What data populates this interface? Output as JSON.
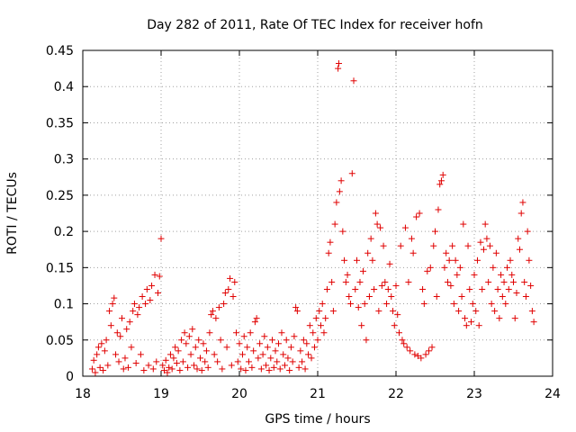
{
  "chart_data": {
    "type": "scatter",
    "title": "Day 282 of 2011, Rate Of TEC Index for receiver hofn",
    "xlabel": "GPS time / hours",
    "ylabel": "ROTI / TECUs",
    "xlim": [
      18,
      24
    ],
    "ylim": [
      0,
      0.45
    ],
    "xticks": [
      "18",
      "19",
      "20",
      "21",
      "22",
      "23",
      "24"
    ],
    "yticks": [
      "0",
      "0.05",
      "0.1",
      "0.15",
      "0.2",
      "0.25",
      "0.3",
      "0.35",
      "0.4",
      "0.45"
    ],
    "grid": true,
    "marker": "plus",
    "color": "#e00000",
    "points": [
      [
        18.12,
        0.01
      ],
      [
        18.14,
        0.022
      ],
      [
        18.16,
        0.005
      ],
      [
        18.18,
        0.03
      ],
      [
        18.2,
        0.04
      ],
      [
        18.22,
        0.012
      ],
      [
        18.24,
        0.045
      ],
      [
        18.26,
        0.008
      ],
      [
        18.28,
        0.035
      ],
      [
        18.3,
        0.05
      ],
      [
        18.32,
        0.015
      ],
      [
        18.34,
        0.09
      ],
      [
        18.36,
        0.07
      ],
      [
        18.38,
        0.1
      ],
      [
        18.4,
        0.108
      ],
      [
        18.42,
        0.03
      ],
      [
        18.44,
        0.06
      ],
      [
        18.46,
        0.02
      ],
      [
        18.48,
        0.055
      ],
      [
        18.5,
        0.08
      ],
      [
        18.52,
        0.01
      ],
      [
        18.54,
        0.025
      ],
      [
        18.56,
        0.065
      ],
      [
        18.58,
        0.012
      ],
      [
        18.6,
        0.075
      ],
      [
        18.62,
        0.04
      ],
      [
        18.64,
        0.09
      ],
      [
        18.66,
        0.1
      ],
      [
        18.68,
        0.018
      ],
      [
        18.7,
        0.085
      ],
      [
        18.72,
        0.095
      ],
      [
        18.74,
        0.03
      ],
      [
        18.76,
        0.11
      ],
      [
        18.78,
        0.008
      ],
      [
        18.8,
        0.1
      ],
      [
        18.82,
        0.12
      ],
      [
        18.84,
        0.015
      ],
      [
        18.86,
        0.105
      ],
      [
        18.88,
        0.125
      ],
      [
        18.9,
        0.01
      ],
      [
        18.92,
        0.14
      ],
      [
        18.94,
        0.02
      ],
      [
        18.96,
        0.115
      ],
      [
        18.98,
        0.138
      ],
      [
        19.0,
        0.19
      ],
      [
        19.02,
        0.015
      ],
      [
        19.04,
        0.008
      ],
      [
        19.06,
        0.022
      ],
      [
        19.08,
        0.005
      ],
      [
        19.1,
        0.012
      ],
      [
        19.12,
        0.03
      ],
      [
        19.14,
        0.01
      ],
      [
        19.16,
        0.025
      ],
      [
        19.18,
        0.04
      ],
      [
        19.2,
        0.018
      ],
      [
        19.22,
        0.035
      ],
      [
        19.24,
        0.008
      ],
      [
        19.26,
        0.05
      ],
      [
        19.28,
        0.02
      ],
      [
        19.3,
        0.06
      ],
      [
        19.32,
        0.045
      ],
      [
        19.34,
        0.012
      ],
      [
        19.36,
        0.055
      ],
      [
        19.38,
        0.03
      ],
      [
        19.4,
        0.065
      ],
      [
        19.42,
        0.015
      ],
      [
        19.44,
        0.04
      ],
      [
        19.46,
        0.01
      ],
      [
        19.48,
        0.05
      ],
      [
        19.5,
        0.025
      ],
      [
        19.52,
        0.008
      ],
      [
        19.54,
        0.045
      ],
      [
        19.56,
        0.02
      ],
      [
        19.58,
        0.035
      ],
      [
        19.6,
        0.012
      ],
      [
        19.62,
        0.06
      ],
      [
        19.64,
        0.085
      ],
      [
        19.66,
        0.09
      ],
      [
        19.68,
        0.03
      ],
      [
        19.7,
        0.08
      ],
      [
        19.72,
        0.02
      ],
      [
        19.74,
        0.095
      ],
      [
        19.76,
        0.05
      ],
      [
        19.78,
        0.01
      ],
      [
        19.8,
        0.1
      ],
      [
        19.82,
        0.115
      ],
      [
        19.84,
        0.04
      ],
      [
        19.86,
        0.12
      ],
      [
        19.88,
        0.135
      ],
      [
        19.9,
        0.015
      ],
      [
        19.92,
        0.11
      ],
      [
        19.94,
        0.13
      ],
      [
        19.96,
        0.06
      ],
      [
        19.98,
        0.02
      ],
      [
        20.0,
        0.045
      ],
      [
        20.02,
        0.01
      ],
      [
        20.04,
        0.03
      ],
      [
        20.06,
        0.055
      ],
      [
        20.08,
        0.008
      ],
      [
        20.1,
        0.04
      ],
      [
        20.12,
        0.02
      ],
      [
        20.14,
        0.06
      ],
      [
        20.16,
        0.012
      ],
      [
        20.18,
        0.035
      ],
      [
        20.2,
        0.075
      ],
      [
        20.22,
        0.08
      ],
      [
        20.24,
        0.025
      ],
      [
        20.26,
        0.045
      ],
      [
        20.28,
        0.01
      ],
      [
        20.3,
        0.03
      ],
      [
        20.32,
        0.055
      ],
      [
        20.34,
        0.015
      ],
      [
        20.36,
        0.04
      ],
      [
        20.38,
        0.008
      ],
      [
        20.4,
        0.025
      ],
      [
        20.42,
        0.05
      ],
      [
        20.44,
        0.012
      ],
      [
        20.46,
        0.035
      ],
      [
        20.48,
        0.02
      ],
      [
        20.5,
        0.045
      ],
      [
        20.52,
        0.01
      ],
      [
        20.54,
        0.06
      ],
      [
        20.56,
        0.03
      ],
      [
        20.58,
        0.015
      ],
      [
        20.6,
        0.05
      ],
      [
        20.62,
        0.025
      ],
      [
        20.64,
        0.008
      ],
      [
        20.66,
        0.04
      ],
      [
        20.68,
        0.02
      ],
      [
        20.7,
        0.055
      ],
      [
        20.72,
        0.095
      ],
      [
        20.74,
        0.09
      ],
      [
        20.76,
        0.012
      ],
      [
        20.78,
        0.035
      ],
      [
        20.8,
        0.02
      ],
      [
        20.82,
        0.05
      ],
      [
        20.84,
        0.01
      ],
      [
        20.86,
        0.045
      ],
      [
        20.88,
        0.03
      ],
      [
        20.9,
        0.07
      ],
      [
        20.92,
        0.025
      ],
      [
        20.94,
        0.06
      ],
      [
        20.96,
        0.04
      ],
      [
        20.98,
        0.08
      ],
      [
        21.0,
        0.05
      ],
      [
        21.02,
        0.09
      ],
      [
        21.04,
        0.07
      ],
      [
        21.06,
        0.1
      ],
      [
        21.08,
        0.06
      ],
      [
        21.1,
        0.08
      ],
      [
        21.12,
        0.12
      ],
      [
        21.14,
        0.17
      ],
      [
        21.16,
        0.185
      ],
      [
        21.18,
        0.13
      ],
      [
        21.2,
        0.09
      ],
      [
        21.22,
        0.21
      ],
      [
        21.24,
        0.24
      ],
      [
        21.26,
        0.425
      ],
      [
        21.27,
        0.432
      ],
      [
        21.28,
        0.255
      ],
      [
        21.3,
        0.27
      ],
      [
        21.32,
        0.2
      ],
      [
        21.34,
        0.16
      ],
      [
        21.36,
        0.13
      ],
      [
        21.38,
        0.14
      ],
      [
        21.4,
        0.11
      ],
      [
        21.42,
        0.1
      ],
      [
        21.44,
        0.28
      ],
      [
        21.46,
        0.408
      ],
      [
        21.48,
        0.12
      ],
      [
        21.5,
        0.16
      ],
      [
        21.52,
        0.095
      ],
      [
        21.54,
        0.13
      ],
      [
        21.56,
        0.07
      ],
      [
        21.58,
        0.145
      ],
      [
        21.6,
        0.1
      ],
      [
        21.62,
        0.05
      ],
      [
        21.64,
        0.17
      ],
      [
        21.66,
        0.11
      ],
      [
        21.68,
        0.19
      ],
      [
        21.7,
        0.16
      ],
      [
        21.72,
        0.12
      ],
      [
        21.74,
        0.225
      ],
      [
        21.76,
        0.21
      ],
      [
        21.78,
        0.09
      ],
      [
        21.8,
        0.205
      ],
      [
        21.82,
        0.125
      ],
      [
        21.84,
        0.18
      ],
      [
        21.86,
        0.13
      ],
      [
        21.88,
        0.1
      ],
      [
        21.9,
        0.12
      ],
      [
        21.92,
        0.155
      ],
      [
        21.94,
        0.11
      ],
      [
        21.96,
        0.09
      ],
      [
        21.98,
        0.07
      ],
      [
        22.0,
        0.125
      ],
      [
        22.02,
        0.085
      ],
      [
        22.04,
        0.06
      ],
      [
        22.06,
        0.18
      ],
      [
        22.08,
        0.05
      ],
      [
        22.1,
        0.045
      ],
      [
        22.12,
        0.205
      ],
      [
        22.14,
        0.04
      ],
      [
        22.16,
        0.13
      ],
      [
        22.18,
        0.035
      ],
      [
        22.2,
        0.19
      ],
      [
        22.22,
        0.17
      ],
      [
        22.24,
        0.03
      ],
      [
        22.26,
        0.22
      ],
      [
        22.28,
        0.028
      ],
      [
        22.3,
        0.225
      ],
      [
        22.32,
        0.025
      ],
      [
        22.34,
        0.12
      ],
      [
        22.36,
        0.1
      ],
      [
        22.38,
        0.03
      ],
      [
        22.4,
        0.145
      ],
      [
        22.42,
        0.035
      ],
      [
        22.44,
        0.15
      ],
      [
        22.46,
        0.04
      ],
      [
        22.48,
        0.18
      ],
      [
        22.5,
        0.2
      ],
      [
        22.52,
        0.11
      ],
      [
        22.54,
        0.23
      ],
      [
        22.56,
        0.265
      ],
      [
        22.58,
        0.27
      ],
      [
        22.6,
        0.278
      ],
      [
        22.62,
        0.15
      ],
      [
        22.64,
        0.17
      ],
      [
        22.66,
        0.13
      ],
      [
        22.68,
        0.16
      ],
      [
        22.7,
        0.125
      ],
      [
        22.72,
        0.18
      ],
      [
        22.74,
        0.1
      ],
      [
        22.76,
        0.16
      ],
      [
        22.78,
        0.14
      ],
      [
        22.8,
        0.09
      ],
      [
        22.82,
        0.15
      ],
      [
        22.84,
        0.11
      ],
      [
        22.86,
        0.21
      ],
      [
        22.88,
        0.08
      ],
      [
        22.9,
        0.07
      ],
      [
        22.92,
        0.18
      ],
      [
        22.94,
        0.12
      ],
      [
        22.96,
        0.075
      ],
      [
        22.98,
        0.1
      ],
      [
        23.0,
        0.14
      ],
      [
        23.02,
        0.09
      ],
      [
        23.04,
        0.16
      ],
      [
        23.06,
        0.07
      ],
      [
        23.08,
        0.185
      ],
      [
        23.1,
        0.12
      ],
      [
        23.12,
        0.175
      ],
      [
        23.14,
        0.21
      ],
      [
        23.16,
        0.19
      ],
      [
        23.18,
        0.13
      ],
      [
        23.2,
        0.18
      ],
      [
        23.22,
        0.1
      ],
      [
        23.24,
        0.15
      ],
      [
        23.26,
        0.09
      ],
      [
        23.28,
        0.17
      ],
      [
        23.3,
        0.12
      ],
      [
        23.32,
        0.08
      ],
      [
        23.34,
        0.14
      ],
      [
        23.36,
        0.11
      ],
      [
        23.38,
        0.13
      ],
      [
        23.4,
        0.1
      ],
      [
        23.42,
        0.15
      ],
      [
        23.44,
        0.12
      ],
      [
        23.46,
        0.16
      ],
      [
        23.48,
        0.14
      ],
      [
        23.5,
        0.13
      ],
      [
        23.52,
        0.08
      ],
      [
        23.54,
        0.115
      ],
      [
        23.56,
        0.19
      ],
      [
        23.58,
        0.175
      ],
      [
        23.6,
        0.225
      ],
      [
        23.62,
        0.24
      ],
      [
        23.64,
        0.13
      ],
      [
        23.66,
        0.11
      ],
      [
        23.68,
        0.2
      ],
      [
        23.7,
        0.16
      ],
      [
        23.72,
        0.125
      ],
      [
        23.74,
        0.09
      ],
      [
        23.76,
        0.075
      ]
    ]
  }
}
